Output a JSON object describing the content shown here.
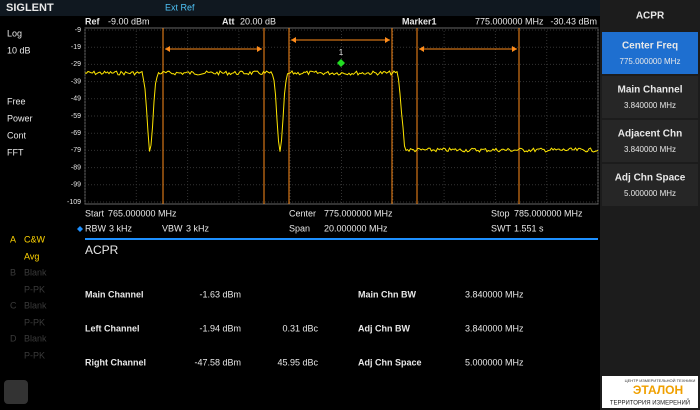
{
  "top_bar": {
    "logo": "SIGLENT",
    "ref_source": "Ext Ref"
  },
  "left_panel": {
    "scale": "Log",
    "scale_div": "10 dB",
    "items": [
      "Free",
      "Power",
      "Cont",
      "FFT"
    ],
    "traces": [
      {
        "id": "A",
        "mode": "C&W",
        "detector": "Avg"
      },
      {
        "id": "B",
        "mode": "Blank",
        "detector": "P-PK"
      },
      {
        "id": "C",
        "mode": "Blank",
        "detector": "P-PK"
      },
      {
        "id": "D",
        "mode": "Blank",
        "detector": "P-PK"
      }
    ]
  },
  "graph_header": {
    "ref_label": "Ref",
    "ref": "-9.00 dBm",
    "att_label": "Att",
    "att": "20.00 dB",
    "marker": "Marker1",
    "marker_freq": "775.000000 MHz",
    "marker_level": "-30.43 dBm"
  },
  "marker_label": "1",
  "y_labels": [
    "-9",
    "-19",
    "-29",
    "-39",
    "-49",
    "-59",
    "-69",
    "-79",
    "-89",
    "-99",
    "-109"
  ],
  "freq": {
    "start_label": "Start",
    "start": "765.000000 MHz",
    "center_label": "Center",
    "center": "775.000000 MHz",
    "stop_label": "Stop",
    "stop": "785.000000 MHz"
  },
  "bw": {
    "rbw_label": "RBW",
    "rbw": "3 kHz",
    "vbw_label": "VBW",
    "vbw": "3 kHz",
    "span_label": "Span",
    "span": "20.000000 MHz",
    "swt_label": "SWT",
    "swt": "1.551 s"
  },
  "panel_title": "ACPR",
  "results": [
    {
      "name": "Main Channel",
      "power": "-1.63 dBm"
    },
    {
      "name": "Left Channel",
      "power": "-1.94 dBm",
      "rel": "0.31 dBc"
    },
    {
      "name": "Right Channel",
      "power": "-47.58 dBm",
      "rel": "45.95 dBc"
    }
  ],
  "params": [
    {
      "name": "Main Chn BW",
      "value": "3.840000 MHz"
    },
    {
      "name": "Adj Chn BW",
      "value": "3.840000 MHz"
    },
    {
      "name": "Adj Chn Space",
      "value": "5.000000 MHz"
    }
  ],
  "softkeys": {
    "title": "ACPR",
    "keys": [
      {
        "label": "Center Freq",
        "value": "775.000000 MHz"
      },
      {
        "label": "Main Channel",
        "value": "3.840000 MHz"
      },
      {
        "label": "Adjacent Chn",
        "value": "3.840000 MHz"
      },
      {
        "label": "Adj Chn Space",
        "value": "5.000000 MHz"
      }
    ]
  },
  "logo": {
    "top": "ЦЕНТР ИЗМЕРИТЕЛЬНОЙ ТЕХНИКИ",
    "name": "ЭТАЛОН",
    "bottom": "ТЕРРИТОРИЯ ИЗМЕРЕНИЙ"
  }
}
